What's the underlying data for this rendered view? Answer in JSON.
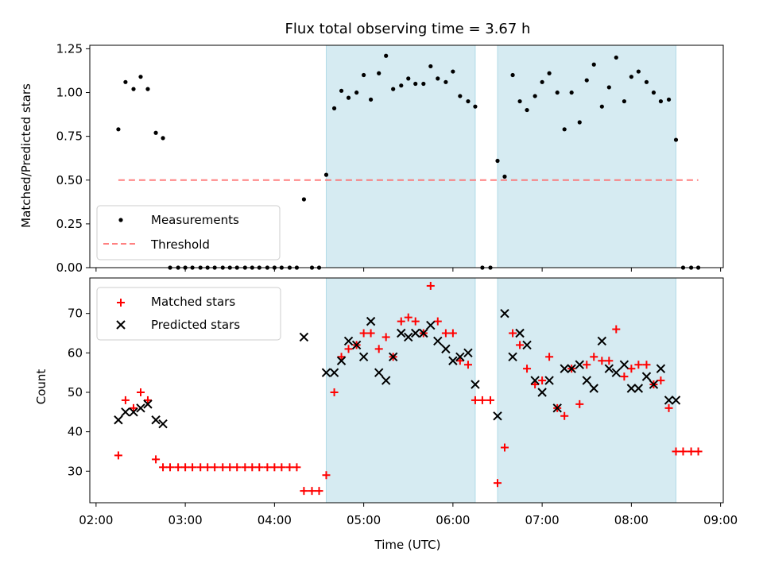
{
  "chart_data": {
    "type": "scatter",
    "title": "Flux total observing time = 3.67 h",
    "xlabel": "Time (UTC)",
    "x_ticks": [
      "02:00",
      "03:00",
      "04:00",
      "05:00",
      "06:00",
      "07:00",
      "08:00",
      "09:00"
    ],
    "x_range_hours": [
      1.93,
      9.03
    ],
    "shaded_intervals_hours": [
      [
        4.58,
        6.25
      ],
      [
        6.5,
        8.5
      ]
    ],
    "shade_color": "#add8e6",
    "panels": [
      {
        "id": "ratio",
        "ylabel": "Matched/Predicted stars",
        "ylim": [
          0,
          1.27
        ],
        "y_ticks": [
          "0.00",
          "0.25",
          "0.50",
          "0.75",
          "1.00",
          "1.25"
        ],
        "threshold": {
          "value": 0.5,
          "x_start": 2.25,
          "x_end": 8.75,
          "color": "#ff6b6b"
        },
        "legend": {
          "location": "lower-left",
          "entries": [
            "Measurements",
            "Threshold"
          ]
        },
        "series": [
          {
            "name": "Measurements",
            "marker": "dot",
            "color": "#000000",
            "x": [
              2.25,
              2.33,
              2.42,
              2.5,
              2.58,
              2.67,
              2.75,
              2.83,
              2.92,
              3.0,
              3.08,
              3.17,
              3.25,
              3.33,
              3.42,
              3.5,
              3.58,
              3.67,
              3.75,
              3.83,
              3.92,
              4.0,
              4.08,
              4.17,
              4.25,
              4.33,
              4.42,
              4.5,
              4.58,
              4.67,
              4.75,
              4.83,
              4.92,
              5.0,
              5.08,
              5.17,
              5.25,
              5.33,
              5.42,
              5.5,
              5.58,
              5.67,
              5.75,
              5.83,
              5.92,
              6.0,
              6.08,
              6.17,
              6.25,
              6.33,
              6.42,
              6.5,
              6.58,
              6.67,
              6.75,
              6.83,
              6.92,
              7.0,
              7.08,
              7.17,
              7.25,
              7.33,
              7.42,
              7.5,
              7.58,
              7.67,
              7.75,
              7.83,
              7.92,
              8.0,
              8.08,
              8.17,
              8.25,
              8.33,
              8.42,
              8.5,
              8.58,
              8.67,
              8.75
            ],
            "y": [
              0.79,
              1.06,
              1.02,
              1.09,
              1.02,
              0.77,
              0.74,
              0.0,
              0.0,
              0.0,
              0.0,
              0.0,
              0.0,
              0.0,
              0.0,
              0.0,
              0.0,
              0.0,
              0.0,
              0.0,
              0.0,
              0.0,
              0.0,
              0.0,
              0.0,
              0.39,
              0.0,
              0.0,
              0.53,
              0.91,
              1.01,
              0.97,
              1.0,
              1.1,
              0.96,
              1.11,
              1.21,
              1.02,
              1.04,
              1.08,
              1.05,
              1.05,
              1.15,
              1.08,
              1.06,
              1.12,
              0.98,
              0.95,
              0.92,
              0.0,
              0.0,
              0.61,
              0.52,
              1.1,
              0.95,
              0.9,
              0.98,
              1.06,
              1.11,
              1.0,
              0.79,
              1.0,
              0.83,
              1.07,
              1.16,
              0.92,
              1.03,
              1.2,
              0.95,
              1.09,
              1.12,
              1.06,
              1.0,
              0.95,
              0.96,
              0.73,
              0.0,
              0.0,
              0.0
            ]
          }
        ]
      },
      {
        "id": "count",
        "ylabel": "Count",
        "ylim": [
          22,
          79
        ],
        "y_ticks": [
          "30",
          "40",
          "50",
          "60",
          "70"
        ],
        "legend": {
          "location": "upper-left",
          "entries": [
            "Matched stars",
            "Predicted stars"
          ]
        },
        "series": [
          {
            "name": "Matched stars",
            "marker": "plus",
            "color": "#ff0000",
            "x": [
              2.25,
              2.33,
              2.42,
              2.5,
              2.58,
              2.67,
              2.75,
              2.83,
              2.92,
              3.0,
              3.08,
              3.17,
              3.25,
              3.33,
              3.42,
              3.5,
              3.58,
              3.67,
              3.75,
              3.83,
              3.92,
              4.0,
              4.08,
              4.17,
              4.25,
              4.33,
              4.42,
              4.5,
              4.58,
              4.67,
              4.75,
              4.83,
              4.92,
              5.0,
              5.08,
              5.17,
              5.25,
              5.33,
              5.42,
              5.5,
              5.58,
              5.67,
              5.75,
              5.83,
              5.92,
              6.0,
              6.08,
              6.17,
              6.25,
              6.33,
              6.42,
              6.5,
              6.58,
              6.67,
              6.75,
              6.83,
              6.92,
              7.0,
              7.08,
              7.17,
              7.25,
              7.33,
              7.42,
              7.5,
              7.58,
              7.67,
              7.75,
              7.83,
              7.92,
              8.0,
              8.08,
              8.17,
              8.25,
              8.33,
              8.42,
              8.5,
              8.58,
              8.67,
              8.75
            ],
            "y": [
              34,
              48,
              46,
              50,
              48,
              33,
              31,
              31,
              31,
              31,
              31,
              31,
              31,
              31,
              31,
              31,
              31,
              31,
              31,
              31,
              31,
              31,
              31,
              31,
              31,
              25,
              25,
              25,
              29,
              50,
              59,
              61,
              62,
              65,
              65,
              61,
              64,
              59,
              68,
              69,
              68,
              65,
              77,
              68,
              65,
              65,
              58,
              57,
              48,
              48,
              48,
              27,
              36,
              65,
              62,
              56,
              52,
              53,
              59,
              46,
              44,
              56,
              47,
              57,
              59,
              58,
              58,
              66,
              54,
              56,
              57,
              57,
              52,
              53,
              46,
              35,
              35,
              35,
              35
            ]
          },
          {
            "name": "Predicted stars",
            "marker": "x",
            "color": "#000000",
            "x": [
              2.25,
              2.33,
              2.42,
              2.5,
              2.58,
              2.67,
              2.75,
              4.33,
              4.58,
              4.67,
              4.75,
              4.83,
              4.92,
              5.0,
              5.08,
              5.17,
              5.25,
              5.33,
              5.42,
              5.5,
              5.58,
              5.67,
              5.75,
              5.83,
              5.92,
              6.0,
              6.08,
              6.17,
              6.25,
              6.5,
              6.58,
              6.67,
              6.75,
              6.83,
              6.92,
              7.0,
              7.08,
              7.17,
              7.25,
              7.33,
              7.42,
              7.5,
              7.58,
              7.67,
              7.75,
              7.83,
              7.92,
              8.0,
              8.08,
              8.17,
              8.25,
              8.33,
              8.42,
              8.5
            ],
            "y": [
              43,
              45,
              45,
              46,
              47,
              43,
              42,
              64,
              55,
              55,
              58,
              63,
              62,
              59,
              68,
              55,
              53,
              59,
              65,
              64,
              65,
              65,
              67,
              63,
              61,
              58,
              59,
              60,
              52,
              44,
              70,
              59,
              65,
              62,
              53,
              50,
              53,
              46,
              56,
              56,
              57,
              53,
              51,
              63,
              56,
              55,
              57,
              51,
              51,
              54,
              52,
              56,
              48,
              48
            ]
          }
        ]
      }
    ]
  }
}
